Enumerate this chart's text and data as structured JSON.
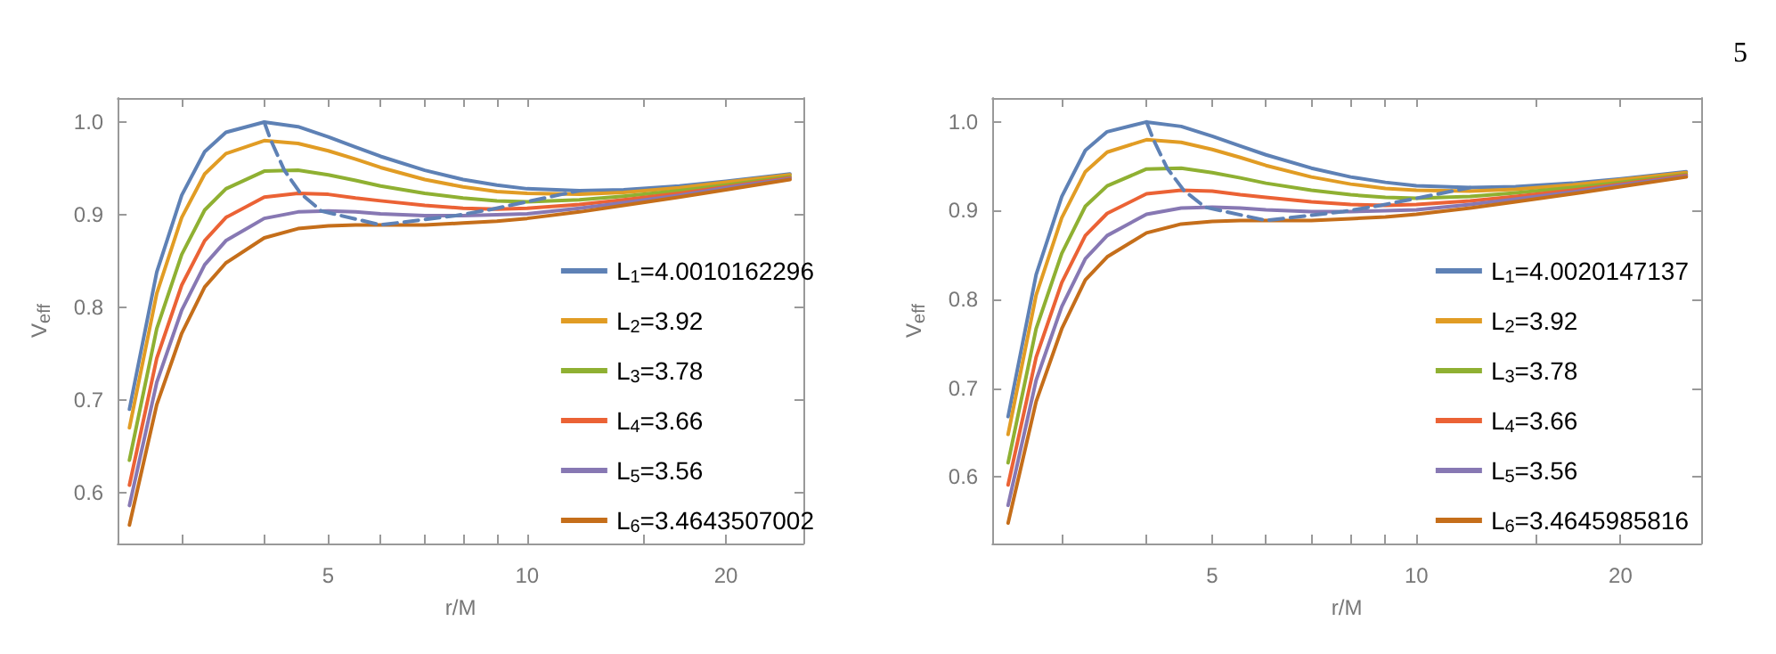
{
  "chart_data": [
    {
      "type": "line",
      "xlabel": "r/M",
      "ylabel": "V$_{eff}$",
      "log": "x",
      "grid": false,
      "legend": "bottom right",
      "marker": "none",
      "line_style": "solid",
      "xlim": [
        2.4,
        26.2
      ],
      "ylim": [
        0.545,
        1.026
      ],
      "xticks": [
        {
          "value": 3,
          "label": null
        },
        {
          "value": 4,
          "label": null
        },
        5,
        {
          "value": 6,
          "label": null
        },
        {
          "value": 7,
          "label": null
        },
        {
          "value": 8,
          "label": null
        },
        {
          "value": 9,
          "label": null
        },
        10,
        {
          "value": 15,
          "label": null
        },
        20
      ],
      "yticks": [
        0.6,
        0.7,
        0.8,
        0.9,
        {
          "value": 1,
          "label": "1.0"
        }
      ],
      "x": [
        2.5,
        2.75,
        3,
        3.25,
        3.5,
        4,
        4.5,
        5,
        5.5,
        6,
        7,
        8,
        9,
        10,
        12,
        14,
        17,
        20,
        25
      ],
      "series": [
        {
          "name": "L$_{1}$=4.0010162296",
          "color": "#5e81b5",
          "values": [
            0.69,
            0.838,
            0.921,
            0.968,
            0.989,
            1.0,
            0.995,
            0.984,
            0.973,
            0.963,
            0.948,
            0.938,
            0.932,
            0.928,
            0.926,
            0.927,
            0.931,
            0.936,
            0.944
          ]
        },
        {
          "name": "L$_{2}$=3.92",
          "color": "#e19c24",
          "values": [
            0.67,
            0.815,
            0.897,
            0.944,
            0.966,
            0.98,
            0.977,
            0.969,
            0.96,
            0.951,
            0.938,
            0.93,
            0.925,
            0.923,
            0.922,
            0.924,
            0.929,
            0.935,
            0.943
          ]
        },
        {
          "name": "L$_{3}$=3.78",
          "color": "#8fb032",
          "values": [
            0.635,
            0.777,
            0.857,
            0.905,
            0.928,
            0.947,
            0.948,
            0.943,
            0.937,
            0.931,
            0.923,
            0.918,
            0.915,
            0.914,
            0.916,
            0.92,
            0.926,
            0.932,
            0.941
          ]
        },
        {
          "name": "L$_{4}$=3.66",
          "color": "#eb6235",
          "values": [
            0.608,
            0.745,
            0.824,
            0.872,
            0.897,
            0.919,
            0.923,
            0.922,
            0.918,
            0.915,
            0.91,
            0.907,
            0.906,
            0.907,
            0.911,
            0.916,
            0.923,
            0.93,
            0.94
          ]
        },
        {
          "name": "L$_{5}$=3.56",
          "color": "#8778b3",
          "values": [
            0.586,
            0.719,
            0.797,
            0.846,
            0.872,
            0.896,
            0.903,
            0.904,
            0.903,
            0.901,
            0.899,
            0.899,
            0.9,
            0.901,
            0.907,
            0.913,
            0.921,
            0.929,
            0.939
          ]
        },
        {
          "name": "L$_{6}$=3.4643507002",
          "color": "#c56e1a",
          "values": [
            0.565,
            0.695,
            0.772,
            0.822,
            0.848,
            0.875,
            0.885,
            0.888,
            0.889,
            0.889,
            0.889,
            0.891,
            0.893,
            0.896,
            0.903,
            0.91,
            0.919,
            0.927,
            0.938
          ]
        },
        {
          "type": "line",
          "color": "#5e81b5",
          "line_style": "dashed",
          "x": [
            4,
            4.09,
            4.29,
            4.54,
            4.88,
            6,
            7.8,
            8.86,
            10,
            11.28,
            12
          ],
          "values": [
            1.0,
            0.981,
            0.948,
            0.923,
            0.904,
            0.889,
            0.899,
            0.906,
            0.914,
            0.922,
            0.926
          ]
        }
      ]
    },
    {
      "type": "line",
      "xlabel": "r/M",
      "ylabel": "V$_{eff}$",
      "log": "x",
      "grid": false,
      "legend": "bottom right",
      "marker": "none",
      "line_style": "solid",
      "annotations": [
        "5"
      ],
      "xlim": [
        2.37,
        26.3
      ],
      "ylim": [
        0.525,
        1.027
      ],
      "xticks": [
        {
          "value": 3,
          "label": null
        },
        {
          "value": 4,
          "label": null
        },
        5,
        {
          "value": 6,
          "label": null
        },
        {
          "value": 7,
          "label": null
        },
        {
          "value": 8,
          "label": null
        },
        {
          "value": 9,
          "label": null
        },
        10,
        {
          "value": 15,
          "label": null
        },
        20
      ],
      "yticks": [
        0.6,
        0.7,
        0.8,
        0.9,
        {
          "value": 1,
          "label": "1.0"
        }
      ],
      "x": [
        2.5,
        2.75,
        3,
        3.25,
        3.5,
        4,
        4.5,
        5,
        5.5,
        6,
        7,
        8,
        9,
        10,
        12,
        14,
        17,
        20,
        25
      ],
      "series": [
        {
          "name": "L$_{1}$=4.0020147137",
          "color": "#5e81b5",
          "values": [
            0.668,
            0.828,
            0.916,
            0.968,
            0.989,
            1.0,
            0.995,
            0.984,
            0.973,
            0.963,
            0.948,
            0.938,
            0.932,
            0.928,
            0.926,
            0.927,
            0.931,
            0.936,
            0.944
          ]
        },
        {
          "name": "L$_{2}$=3.92",
          "color": "#e19c24",
          "values": [
            0.648,
            0.805,
            0.892,
            0.944,
            0.966,
            0.98,
            0.977,
            0.969,
            0.96,
            0.951,
            0.938,
            0.93,
            0.925,
            0.923,
            0.922,
            0.924,
            0.929,
            0.935,
            0.943
          ]
        },
        {
          "name": "L$_{3}$=3.78",
          "color": "#8fb032",
          "values": [
            0.616,
            0.767,
            0.852,
            0.905,
            0.928,
            0.947,
            0.948,
            0.943,
            0.937,
            0.931,
            0.923,
            0.918,
            0.915,
            0.914,
            0.916,
            0.92,
            0.926,
            0.932,
            0.941
          ]
        },
        {
          "name": "L$_{4}$=3.66",
          "color": "#eb6235",
          "values": [
            0.591,
            0.735,
            0.819,
            0.872,
            0.897,
            0.919,
            0.923,
            0.922,
            0.918,
            0.915,
            0.91,
            0.907,
            0.906,
            0.907,
            0.911,
            0.916,
            0.923,
            0.93,
            0.94
          ]
        },
        {
          "name": "L$_{5}$=3.56",
          "color": "#8778b3",
          "values": [
            0.568,
            0.709,
            0.792,
            0.846,
            0.872,
            0.896,
            0.903,
            0.904,
            0.903,
            0.901,
            0.899,
            0.899,
            0.9,
            0.901,
            0.907,
            0.913,
            0.921,
            0.929,
            0.939
          ]
        },
        {
          "name": "L$_{6}$=3.4645985816",
          "color": "#c56e1a",
          "values": [
            0.548,
            0.685,
            0.767,
            0.822,
            0.848,
            0.875,
            0.885,
            0.888,
            0.889,
            0.889,
            0.889,
            0.891,
            0.893,
            0.896,
            0.903,
            0.91,
            0.919,
            0.927,
            0.938
          ]
        },
        {
          "type": "line",
          "color": "#5e81b5",
          "line_style": "dashed",
          "x": [
            4,
            4.09,
            4.29,
            4.54,
            4.88,
            6,
            7.8,
            8.86,
            10,
            11.28,
            12
          ],
          "values": [
            1.0,
            0.981,
            0.948,
            0.923,
            0.904,
            0.889,
            0.899,
            0.906,
            0.914,
            0.922,
            0.926
          ]
        }
      ]
    }
  ]
}
